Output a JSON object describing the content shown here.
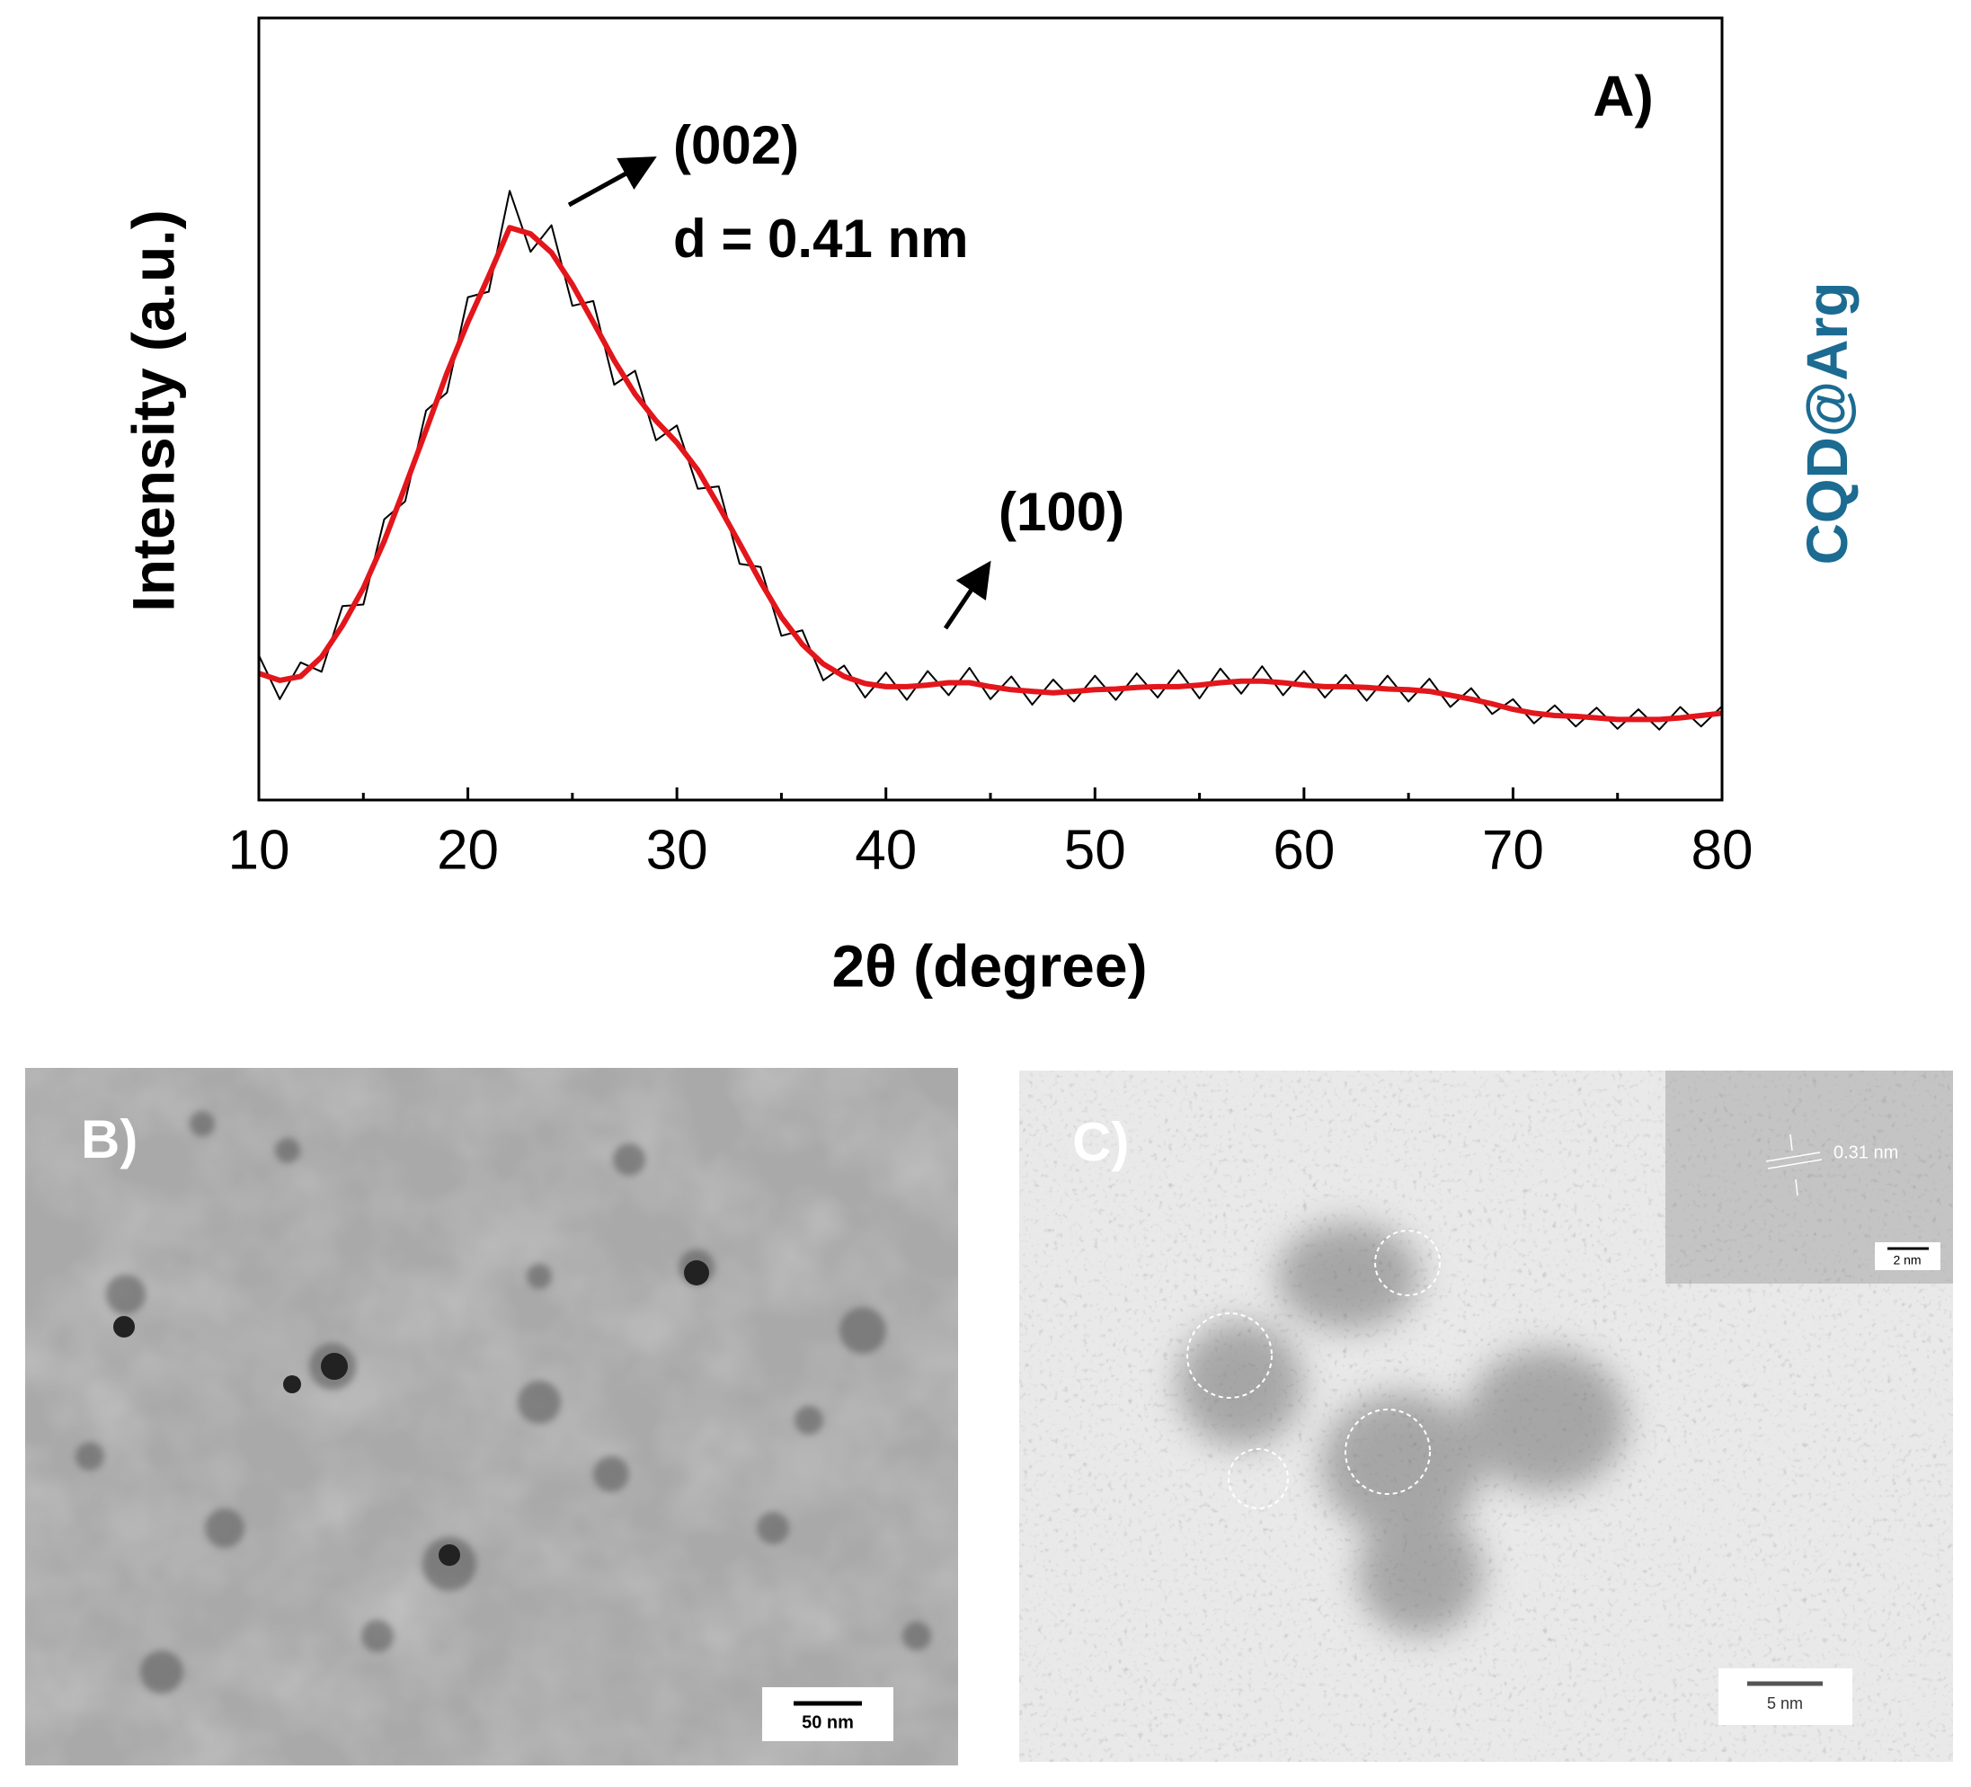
{
  "chart_data": {
    "type": "line",
    "panel_label": "A)",
    "x_label": "2θ (degree)",
    "y_label": "Intensity (a.u.)",
    "sample_label": "CQD@Arg",
    "annotations": [
      "(002)",
      "d = 0.41 nm",
      "(100)"
    ],
    "x": [
      10,
      11,
      12,
      13,
      14,
      15,
      16,
      17,
      18,
      19,
      20,
      21,
      22,
      23,
      24,
      25,
      26,
      27,
      28,
      29,
      30,
      31,
      32,
      33,
      34,
      35,
      36,
      37,
      38,
      39,
      40,
      41,
      42,
      43,
      44,
      45,
      46,
      47,
      48,
      49,
      50,
      51,
      52,
      53,
      54,
      55,
      56,
      57,
      58,
      59,
      60,
      61,
      62,
      63,
      64,
      65,
      66,
      67,
      68,
      69,
      70,
      71,
      72,
      73,
      74,
      75,
      76,
      77,
      78,
      79,
      80
    ],
    "series": [
      {
        "color": "#000000",
        "values": [
          18.5,
          12.9,
          17.6,
          16.4,
          24.8,
          25.0,
          35.9,
          38.2,
          49.8,
          52.1,
          64.3,
          65.0,
          77.9,
          70.1,
          73.5,
          63.2,
          63.8,
          53.1,
          54.9,
          46.0,
          47.9,
          39.8,
          40.1,
          30.2,
          29.8,
          21.0,
          21.7,
          15.3,
          17.2,
          13.1,
          16.3,
          12.8,
          16.5,
          13.4,
          16.9,
          12.9,
          15.8,
          12.2,
          15.4,
          12.6,
          15.9,
          12.8,
          16.2,
          13.1,
          16.6,
          13.0,
          16.8,
          13.6,
          17.1,
          13.4,
          16.5,
          13.1,
          16.0,
          12.7,
          15.9,
          12.6,
          15.5,
          11.9,
          14.3,
          11.0,
          12.9,
          9.8,
          12.1,
          9.4,
          11.8,
          9.1,
          11.6,
          9.0,
          11.9,
          9.4,
          12.0
        ]
      },
      {
        "color": "#e3161b",
        "values": [
          16.2,
          15.3,
          15.8,
          18.3,
          22.3,
          27.1,
          33.1,
          40.1,
          47.3,
          54.6,
          61.1,
          67.0,
          73.2,
          72.4,
          70.0,
          65.9,
          61.1,
          56.2,
          51.9,
          48.5,
          45.7,
          42.2,
          37.6,
          32.8,
          27.9,
          23.4,
          19.9,
          17.4,
          15.8,
          14.9,
          14.5,
          14.5,
          14.7,
          15.0,
          15.0,
          14.5,
          14.1,
          13.9,
          13.7,
          13.9,
          14.1,
          14.2,
          14.4,
          14.5,
          14.5,
          14.7,
          15.0,
          15.2,
          15.2,
          15.0,
          14.7,
          14.5,
          14.5,
          14.4,
          14.2,
          14.1,
          13.9,
          13.4,
          12.9,
          12.3,
          11.6,
          11.1,
          10.8,
          10.7,
          10.5,
          10.3,
          10.3,
          10.3,
          10.5,
          10.8,
          11.1
        ]
      }
    ],
    "xlim": [
      10,
      80
    ],
    "ylim": [
      0,
      100
    ],
    "xticks": [
      10,
      20,
      30,
      40,
      50,
      60,
      70,
      80
    ],
    "xminorticks": [
      15,
      25,
      35,
      45,
      55,
      65,
      75
    ],
    "sample_label_color": "#1b6b92"
  },
  "images": [
    {
      "label": "B)",
      "scale_bar": "50 nm"
    },
    {
      "label": "C)",
      "scale_bar": "5 nm",
      "inset_scale_bar": "2 nm",
      "inset_annotation": "0.31 nm"
    }
  ]
}
